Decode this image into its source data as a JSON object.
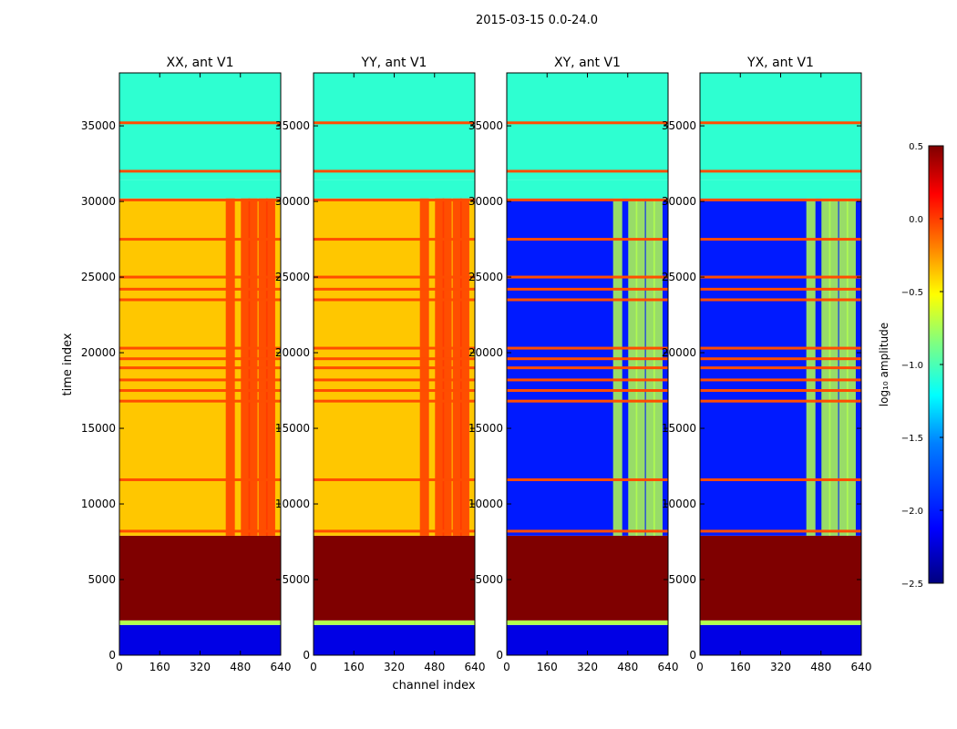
{
  "suptitle": "2015-03-15 0.0-24.0",
  "chart_data": {
    "type": "heatmap",
    "x_ticks": [
      0,
      160,
      320,
      480,
      640
    ],
    "y_ticks": [
      0,
      5000,
      10000,
      15000,
      20000,
      25000,
      30000,
      35000
    ],
    "xlim": [
      0,
      640
    ],
    "ylim": [
      0,
      38500
    ],
    "xlabel": "channel index",
    "ylabel": "time index",
    "panels": [
      {
        "title": "XX, ant V1",
        "kind": "parallel"
      },
      {
        "title": "YY, ant V1",
        "kind": "parallel"
      },
      {
        "title": "XY, ant V1",
        "kind": "cross"
      },
      {
        "title": "YX, ant V1",
        "kind": "cross"
      }
    ],
    "colorbar": {
      "label": "log₁₀ amplitude",
      "range": [
        -2.5,
        0.5
      ],
      "ticks": [
        "0.5",
        "0.0",
        "−0.5",
        "−1.0",
        "−1.5",
        "−2.0",
        "−2.5"
      ],
      "colormap": [
        "#00007f",
        "#0000ff",
        "#0080ff",
        "#00ffff",
        "#80ff80",
        "#ffff00",
        "#ff8000",
        "#ff0000",
        "#7f0000"
      ]
    },
    "bands_parallel": [
      {
        "t": [
          0,
          2000
        ],
        "v": 0.1
      },
      {
        "t": [
          2000,
          2300
        ],
        "v": 0.55
      },
      {
        "t": [
          2300,
          7900
        ],
        "v": 1.0
      },
      {
        "t": [
          7900,
          30200
        ],
        "v": 0.68
      },
      {
        "t": [
          30200,
          31400
        ],
        "v": 0.42
      },
      {
        "t": [
          31400,
          38500
        ],
        "v": 0.42
      }
    ],
    "bands_cross": [
      {
        "t": [
          0,
          2000
        ],
        "v": 0.1
      },
      {
        "t": [
          2000,
          2300
        ],
        "v": 0.55
      },
      {
        "t": [
          2300,
          7900
        ],
        "v": 1.0
      },
      {
        "t": [
          7900,
          30200
        ],
        "v": 0.15
      },
      {
        "t": [
          30200,
          31400
        ],
        "v": 0.42
      },
      {
        "t": [
          31400,
          38500
        ],
        "v": 0.42
      }
    ],
    "hot_columns": [
      440,
      500,
      530,
      570,
      600
    ],
    "rfi_lines": [
      8200,
      11600,
      16800,
      17500,
      18200,
      19000,
      19600,
      20300,
      23500,
      24200,
      25000,
      27500,
      30100,
      32000,
      35200
    ]
  }
}
